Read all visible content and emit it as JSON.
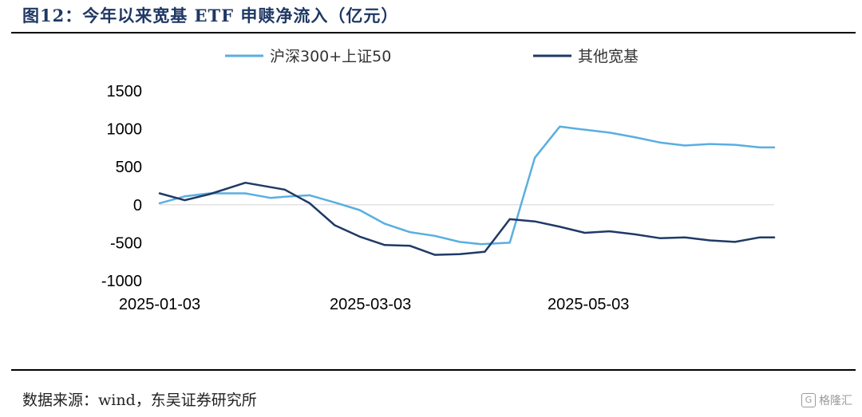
{
  "title": "图12：今年以来宽基 ETF 申赎净流入（亿元）",
  "source": "数据来源：wind，东吴证券研究所",
  "watermark": "格隆汇",
  "chart_data": {
    "type": "line",
    "title": "今年以来宽基 ETF 申赎净流入（亿元）",
    "xlabel": "",
    "ylabel": "",
    "ylim": [
      -1000,
      1500
    ],
    "yticks": [
      "1500",
      "1000",
      "500",
      "0",
      "-500",
      "-1000"
    ],
    "ytick_values": [
      1500,
      1000,
      500,
      0,
      -500,
      -1000
    ],
    "xtick_labels": [
      "2025-01-03",
      "2025-03-03",
      "2025-05-03"
    ],
    "xtick_dates": [
      "2025-01-03",
      "2025-03-03",
      "2025-05-03"
    ],
    "x_range": [
      "2025-01-03",
      "2025-06-24"
    ],
    "legend_position": "top",
    "series": [
      {
        "name": "沪深300+上证50",
        "color": "#5aaee0",
        "x": [
          "2025-01-03",
          "2025-01-10",
          "2025-01-17",
          "2025-01-24",
          "2025-01-27",
          "2025-02-03",
          "2025-02-07",
          "2025-02-14",
          "2025-02-21",
          "2025-02-28",
          "2025-03-07",
          "2025-03-14",
          "2025-03-21",
          "2025-03-28",
          "2025-04-03",
          "2025-04-11",
          "2025-04-18",
          "2025-04-25",
          "2025-04-30",
          "2025-05-09",
          "2025-05-16",
          "2025-05-23",
          "2025-05-30",
          "2025-06-06",
          "2025-06-13",
          "2025-06-20",
          "2025-06-24"
        ],
        "values": [
          20,
          110,
          150,
          150,
          150,
          90,
          105,
          125,
          30,
          -70,
          -250,
          -360,
          -410,
          -490,
          -520,
          -500,
          620,
          1030,
          1000,
          950,
          890,
          820,
          780,
          800,
          790,
          755,
          755
        ]
      },
      {
        "name": "其他宽基",
        "color": "#1f3a66",
        "x": [
          "2025-01-03",
          "2025-01-10",
          "2025-01-17",
          "2025-01-27",
          "2025-02-07",
          "2025-02-14",
          "2025-02-21",
          "2025-02-28",
          "2025-03-07",
          "2025-03-14",
          "2025-03-21",
          "2025-03-28",
          "2025-04-04",
          "2025-04-11",
          "2025-04-18",
          "2025-04-25",
          "2025-05-02",
          "2025-05-09",
          "2025-05-16",
          "2025-05-23",
          "2025-05-30",
          "2025-06-06",
          "2025-06-13",
          "2025-06-20",
          "2025-06-24"
        ],
        "values": [
          150,
          60,
          140,
          290,
          200,
          20,
          -270,
          -420,
          -530,
          -540,
          -660,
          -650,
          -620,
          -190,
          -220,
          -290,
          -370,
          -350,
          -390,
          -440,
          -430,
          -470,
          -490,
          -430,
          -430
        ]
      }
    ]
  }
}
